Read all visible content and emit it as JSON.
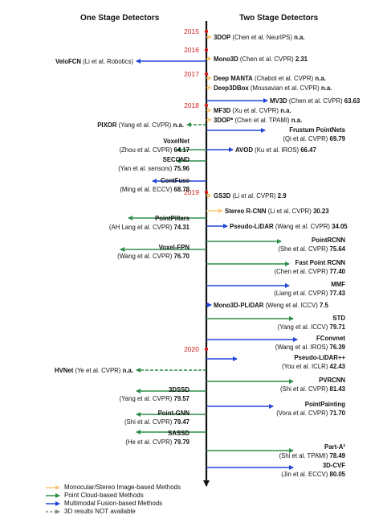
{
  "titles": {
    "left": "One Stage Detectors",
    "right": "Two Stage Detectors"
  },
  "years": [
    "2015",
    "2016",
    "2017",
    "2018",
    "2019",
    "2020"
  ],
  "colors": {
    "monocular": "#f8c97a",
    "pointcloud": "#2f8f4a",
    "fusion": "#2446d8",
    "na": "#8a8a8a",
    "year": "#d01a1a",
    "axis": "#111111"
  },
  "methods": [
    {
      "side": "right",
      "kind": "monocular",
      "lines": [
        {
          "b": "3DOP",
          "t": " (Chen et al. NeurIPS) "
        },
        {
          "b": "n.a."
        }
      ]
    },
    {
      "side": "left",
      "kind": "fusion",
      "lines": [
        {
          "b": "VeloFCN",
          "t": " (Li et al. Robotics)"
        }
      ]
    },
    {
      "side": "right",
      "kind": "monocular",
      "lines": [
        {
          "b": "Mono3D",
          "t": " (Chen et al. CVPR) "
        },
        {
          "b": "2.31"
        }
      ]
    },
    {
      "side": "right",
      "kind": "monocular",
      "lines": [
        {
          "b": "Deep MANTA",
          "t": " (Chabot et al. CVPR) "
        },
        {
          "b": "n.a."
        }
      ]
    },
    {
      "side": "right",
      "kind": "monocular",
      "lines": [
        {
          "b": "Deep3DBox",
          "t": " (Mousavian et al. CVPR) "
        },
        {
          "b": "n.a."
        }
      ]
    },
    {
      "side": "right",
      "kind": "fusion",
      "lines": [
        {
          "b": "MV3D",
          "t": " (Chen et al. CVPR) "
        },
        {
          "b": "63.63"
        }
      ]
    },
    {
      "side": "right",
      "kind": "monocular",
      "lines": [
        {
          "b": "MF3D",
          "t": " (Xu et al. CVPR) "
        },
        {
          "b": "n.a."
        }
      ]
    },
    {
      "side": "right",
      "kind": "monocular",
      "lines": [
        {
          "b": "3DOP*",
          "t": " (Chen et al. TPAMI) "
        },
        {
          "b": "n.a."
        }
      ]
    },
    {
      "side": "left",
      "kind": "pointcloud",
      "na": true,
      "lines": [
        {
          "b": "PIXOR",
          "t": " (Yang et al. CVPR) "
        },
        {
          "b": "n.a."
        }
      ]
    },
    {
      "side": "right",
      "kind": "fusion",
      "lines": [
        {
          "b": "Frustum PointNets"
        },
        {
          "t": "(Qi et al. CVPR) "
        },
        {
          "b": "69.79"
        }
      ]
    },
    {
      "side": "left",
      "kind": "pointcloud",
      "lines": [
        {
          "b": "VoxelNet"
        },
        {
          "t": "(Zhou et al. CVPR) "
        },
        {
          "b": "64.17"
        }
      ]
    },
    {
      "side": "right",
      "kind": "fusion",
      "lines": [
        {
          "b": "AVOD",
          "t": " (Ku et al. IROS) "
        },
        {
          "b": "66.47"
        }
      ]
    },
    {
      "side": "left",
      "kind": "pointcloud",
      "lines": [
        {
          "b": "SECOND"
        },
        {
          "t": "(Yan et al. sensors) "
        },
        {
          "b": "75.96"
        }
      ]
    },
    {
      "side": "left",
      "kind": "fusion",
      "lines": [
        {
          "b": "ContFuse"
        },
        {
          "t": "(Ming et al. ECCV) "
        },
        {
          "b": "68.78"
        }
      ]
    },
    {
      "side": "right",
      "kind": "monocular",
      "lines": [
        {
          "b": "GS3D",
          "t": " (Li et al. CVPR) "
        },
        {
          "b": "2.9"
        }
      ]
    },
    {
      "side": "right",
      "kind": "monocular",
      "lines": [
        {
          "b": "Stereo R-CNN",
          "t": " (Li et al. CVPR) "
        },
        {
          "b": "30.23"
        }
      ]
    },
    {
      "side": "left",
      "kind": "pointcloud",
      "lines": [
        {
          "b": "PointPillars"
        },
        {
          "t": "(AH Lang et al. CVPR) "
        },
        {
          "b": "74.31"
        }
      ]
    },
    {
      "side": "right",
      "kind": "fusion",
      "lines": [
        {
          "b": "Pseudo-LiDAR",
          "t": " (Wang et al. CVPR) "
        },
        {
          "b": "34.05"
        }
      ]
    },
    {
      "side": "right",
      "kind": "pointcloud",
      "lines": [
        {
          "b": "PointRCNN"
        },
        {
          "t": "(She et al. CVPR) "
        },
        {
          "b": "75.64"
        }
      ]
    },
    {
      "side": "left",
      "kind": "pointcloud",
      "lines": [
        {
          "b": "Voxel-FPN"
        },
        {
          "t": "(Wang et al. CVPR) "
        },
        {
          "b": "76.70"
        }
      ]
    },
    {
      "side": "right",
      "kind": "pointcloud",
      "lines": [
        {
          "b": "Fast Point RCNN"
        },
        {
          "t": "(Chen et al. CVPR) "
        },
        {
          "b": "77.40"
        }
      ]
    },
    {
      "side": "right",
      "kind": "fusion",
      "lines": [
        {
          "b": "MMF"
        },
        {
          "t": "(Liang et al. CVPR) "
        },
        {
          "b": "77.43"
        }
      ]
    },
    {
      "side": "right",
      "kind": "fusion",
      "lines": [
        {
          "b": "Mono3D-PLiDAR",
          "t": " (Weng et al. ICCV) "
        },
        {
          "b": "7.5"
        }
      ]
    },
    {
      "side": "right",
      "kind": "pointcloud",
      "lines": [
        {
          "b": "STD"
        },
        {
          "t": "(Yang et al. ICCV) "
        },
        {
          "b": "79.71"
        }
      ]
    },
    {
      "side": "right",
      "kind": "fusion",
      "lines": [
        {
          "b": "FConvnet"
        },
        {
          "t": "(Wang et al. IROS) "
        },
        {
          "b": "76.39"
        }
      ]
    },
    {
      "side": "right",
      "kind": "fusion",
      "lines": [
        {
          "b": "Pseudo-LiDAR++"
        },
        {
          "t": "(You et al. ICLR) "
        },
        {
          "b": "42.43"
        }
      ]
    },
    {
      "side": "left",
      "kind": "pointcloud",
      "na": true,
      "lines": [
        {
          "b": "HVNet",
          "t": " (Ye et al. CVPR) "
        },
        {
          "b": "n.a."
        }
      ]
    },
    {
      "side": "right",
      "kind": "pointcloud",
      "lines": [
        {
          "b": "PVRCNN"
        },
        {
          "t": "(Shi et al. CVPR) "
        },
        {
          "b": "81.43"
        }
      ]
    },
    {
      "side": "left",
      "kind": "pointcloud",
      "lines": [
        {
          "b": "3DSSD"
        },
        {
          "t": "(Yang et al. CVPR) "
        },
        {
          "b": "79.57"
        }
      ]
    },
    {
      "side": "right",
      "kind": "fusion",
      "lines": [
        {
          "b": "PointPainting"
        },
        {
          "t": "(Vora et al. CVPR) "
        },
        {
          "b": "71.70"
        }
      ]
    },
    {
      "side": "left",
      "kind": "pointcloud",
      "lines": [
        {
          "b": "Point-GNN"
        },
        {
          "t": "(Shi et al. CVPR) "
        },
        {
          "b": "79.47"
        }
      ]
    },
    {
      "side": "left",
      "kind": "pointcloud",
      "lines": [
        {
          "b": "SASSD"
        },
        {
          "t": "(He et al. CVPR) "
        },
        {
          "b": "79.79"
        }
      ]
    },
    {
      "side": "right",
      "kind": "pointcloud",
      "lines": [
        {
          "b": "Part-A²"
        },
        {
          "t": "(Shi et al. TPAMI) "
        },
        {
          "b": "78.49"
        }
      ]
    },
    {
      "side": "right",
      "kind": "fusion",
      "lines": [
        {
          "b": "3D-CVF"
        },
        {
          "t": "(Jin et al. ECCV) "
        },
        {
          "b": "80.05"
        }
      ]
    }
  ],
  "legend": [
    {
      "kind": "monocular",
      "label": "Monocular/Stereo Image-based Methods"
    },
    {
      "kind": "pointcloud",
      "label": "Point Cloud-based Methods"
    },
    {
      "kind": "fusion",
      "label": "Multimodal Fusion-based Methods"
    },
    {
      "kind": "na",
      "label": "3D results NOT available"
    }
  ]
}
